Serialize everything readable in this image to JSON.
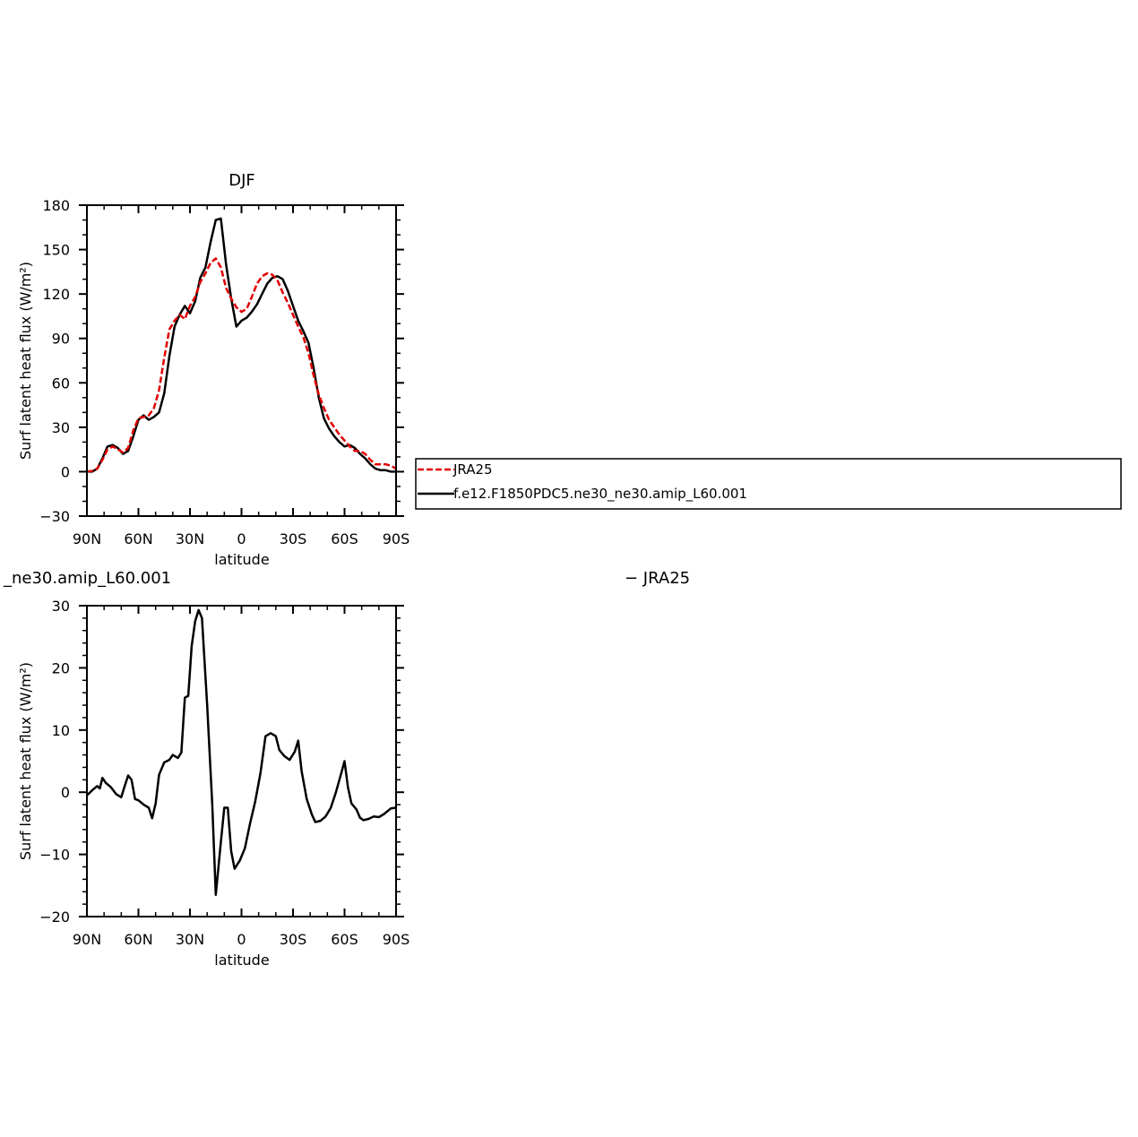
{
  "chart_data": [
    {
      "type": "line",
      "title": "DJF",
      "xlabel": "latitude",
      "ylabel": "Surf latent heat flux (W/m²)",
      "xlim": [
        90,
        -90
      ],
      "ylim": [
        -30,
        180
      ],
      "xtick_labels": [
        "90N",
        "60N",
        "30N",
        "0",
        "30S",
        "60S",
        "90S"
      ],
      "ytick_labels": [
        "180",
        "150",
        "120",
        "90",
        "60",
        "30",
        "0",
        "−30"
      ],
      "legend_position": "right",
      "series": [
        {
          "name": "JRA25",
          "color": "#e00000",
          "style": "dashed",
          "points": [
            [
              90,
              0
            ],
            [
              87,
              0.5
            ],
            [
              84,
              2
            ],
            [
              81,
              8
            ],
            [
              78,
              15
            ],
            [
              75,
              17
            ],
            [
              72,
              15
            ],
            [
              69,
              13
            ],
            [
              66,
              16
            ],
            [
              63,
              28
            ],
            [
              60,
              36
            ],
            [
              57,
              37
            ],
            [
              54,
              38
            ],
            [
              51,
              43
            ],
            [
              48,
              55
            ],
            [
              45,
              77
            ],
            [
              42,
              96
            ],
            [
              39,
              102
            ],
            [
              36,
              106
            ],
            [
              33,
              103
            ],
            [
              30,
              112
            ],
            [
              27,
              118
            ],
            [
              24,
              128
            ],
            [
              21,
              134
            ],
            [
              18,
              141
            ],
            [
              15,
              144
            ],
            [
              12,
              138
            ],
            [
              9,
              124
            ],
            [
              6,
              117
            ],
            [
              3,
              111
            ],
            [
              0,
              108
            ],
            [
              -3,
              110
            ],
            [
              -6,
              118
            ],
            [
              -9,
              127
            ],
            [
              -12,
              132
            ],
            [
              -15,
              134
            ],
            [
              -18,
              133
            ],
            [
              -21,
              129
            ],
            [
              -24,
              121
            ],
            [
              -27,
              114
            ],
            [
              -30,
              106
            ],
            [
              -33,
              98
            ],
            [
              -36,
              91
            ],
            [
              -39,
              80
            ],
            [
              -42,
              65
            ],
            [
              -45,
              52
            ],
            [
              -48,
              43
            ],
            [
              -51,
              35
            ],
            [
              -54,
              30
            ],
            [
              -57,
              25
            ],
            [
              -60,
              21
            ],
            [
              -63,
              17
            ],
            [
              -66,
              14
            ],
            [
              -69,
              14
            ],
            [
              -72,
              12
            ],
            [
              -75,
              8
            ],
            [
              -78,
              5
            ],
            [
              -81,
              5
            ],
            [
              -84,
              5
            ],
            [
              -87,
              4
            ],
            [
              -90,
              2
            ]
          ]
        },
        {
          "name": "f.e12.F1850PDC5.ne30_ne30.amip_L60.001",
          "color": "#000000",
          "style": "solid",
          "points": [
            [
              90,
              0
            ],
            [
              87,
              0
            ],
            [
              84,
              2
            ],
            [
              81,
              9
            ],
            [
              78,
              17
            ],
            [
              75,
              18
            ],
            [
              72,
              16
            ],
            [
              69,
              12
            ],
            [
              66,
              14
            ],
            [
              63,
              24
            ],
            [
              60,
              35
            ],
            [
              57,
              38
            ],
            [
              54,
              35
            ],
            [
              51,
              37
            ],
            [
              48,
              40
            ],
            [
              45,
              53
            ],
            [
              42,
              78
            ],
            [
              39,
              98
            ],
            [
              36,
              106
            ],
            [
              33,
              112
            ],
            [
              30,
              107
            ],
            [
              27,
              115
            ],
            [
              24,
              131
            ],
            [
              21,
              138
            ],
            [
              18,
              155
            ],
            [
              15,
              170
            ],
            [
              12,
              171
            ],
            [
              9,
              140
            ],
            [
              6,
              117
            ],
            [
              3,
              98
            ],
            [
              0,
              102
            ],
            [
              -3,
              104
            ],
            [
              -6,
              108
            ],
            [
              -9,
              113
            ],
            [
              -12,
              120
            ],
            [
              -15,
              127
            ],
            [
              -18,
              131
            ],
            [
              -21,
              132
            ],
            [
              -24,
              130
            ],
            [
              -27,
              122
            ],
            [
              -30,
              112
            ],
            [
              -33,
              102
            ],
            [
              -36,
              95
            ],
            [
              -39,
              87
            ],
            [
              -42,
              70
            ],
            [
              -45,
              50
            ],
            [
              -48,
              36
            ],
            [
              -51,
              29
            ],
            [
              -54,
              24
            ],
            [
              -57,
              20
            ],
            [
              -60,
              17
            ],
            [
              -63,
              18
            ],
            [
              -66,
              16
            ],
            [
              -69,
              12
            ],
            [
              -72,
              9
            ],
            [
              -75,
              5
            ],
            [
              -78,
              2
            ],
            [
              -81,
              1
            ],
            [
              -84,
              1
            ],
            [
              -87,
              0
            ],
            [
              -90,
              0
            ]
          ]
        }
      ],
      "legend": [
        {
          "label": "JRA25",
          "color": "#e00000",
          "style": "dashed"
        },
        {
          "label": "f.e12.F1850PDC5.ne30_ne30.amip_L60.001",
          "color": "#000000",
          "style": "solid"
        }
      ]
    },
    {
      "type": "line",
      "title_left": "_ne30.amip_L60.001",
      "title_right": "− JRA25",
      "xlabel": "latitude",
      "ylabel": "Surf latent heat flux (W/m²)",
      "xlim": [
        90,
        -90
      ],
      "ylim": [
        -20,
        30
      ],
      "xtick_labels": [
        "90N",
        "60N",
        "30N",
        "0",
        "30S",
        "60S",
        "90S"
      ],
      "ytick_labels": [
        "30",
        "20",
        "10",
        "0",
        "−10",
        "−20"
      ],
      "series": [
        {
          "color": "#000000",
          "style": "solid",
          "points": [
            [
              90,
              -0.5
            ],
            [
              87,
              0.3
            ],
            [
              84,
              1
            ],
            [
              82.5,
              0.6
            ],
            [
              81,
              2.3
            ],
            [
              79,
              1.5
            ],
            [
              76,
              0.8
            ],
            [
              73,
              -0.3
            ],
            [
              70,
              -0.8
            ],
            [
              68,
              1
            ],
            [
              66,
              2.7
            ],
            [
              64,
              2
            ],
            [
              62,
              -1.1
            ],
            [
              60,
              -1.3
            ],
            [
              57,
              -2
            ],
            [
              54,
              -2.5
            ],
            [
              52,
              -4.2
            ],
            [
              50,
              -1.8
            ],
            [
              48,
              2.8
            ],
            [
              45,
              4.8
            ],
            [
              42,
              5.2
            ],
            [
              40,
              6
            ],
            [
              37,
              5.5
            ],
            [
              35,
              6.4
            ],
            [
              33,
              15.2
            ],
            [
              31,
              15.5
            ],
            [
              29,
              23.5
            ],
            [
              27,
              27.5
            ],
            [
              25,
              29.3
            ],
            [
              23,
              28
            ],
            [
              20,
              14
            ],
            [
              17,
              -2
            ],
            [
              15,
              -16.5
            ],
            [
              12,
              -8
            ],
            [
              10,
              -2.5
            ],
            [
              8,
              -2.5
            ],
            [
              6,
              -9.5
            ],
            [
              4,
              -12.3
            ],
            [
              1,
              -11
            ],
            [
              -2,
              -9
            ],
            [
              -5,
              -5
            ],
            [
              -8,
              -1.5
            ],
            [
              -11,
              3
            ],
            [
              -14,
              9
            ],
            [
              -17,
              9.5
            ],
            [
              -20,
              9
            ],
            [
              -22,
              6.8
            ],
            [
              -25,
              5.8
            ],
            [
              -28,
              5.2
            ],
            [
              -31,
              6.5
            ],
            [
              -33,
              8.3
            ],
            [
              -35,
              3.4
            ],
            [
              -38,
              -1.1
            ],
            [
              -41,
              -3.6
            ],
            [
              -43,
              -4.8
            ],
            [
              -46,
              -4.6
            ],
            [
              -49,
              -3.9
            ],
            [
              -52,
              -2.5
            ],
            [
              -55,
              0
            ],
            [
              -58,
              3
            ],
            [
              -60,
              5
            ],
            [
              -62,
              0.8
            ],
            [
              -64,
              -1.8
            ],
            [
              -67,
              -2.8
            ],
            [
              -69,
              -4.1
            ],
            [
              -71,
              -4.5
            ],
            [
              -74,
              -4.3
            ],
            [
              -77,
              -3.9
            ],
            [
              -80,
              -4
            ],
            [
              -83,
              -3.5
            ],
            [
              -87,
              -2.6
            ],
            [
              -90,
              -2.5
            ]
          ]
        }
      ]
    }
  ]
}
